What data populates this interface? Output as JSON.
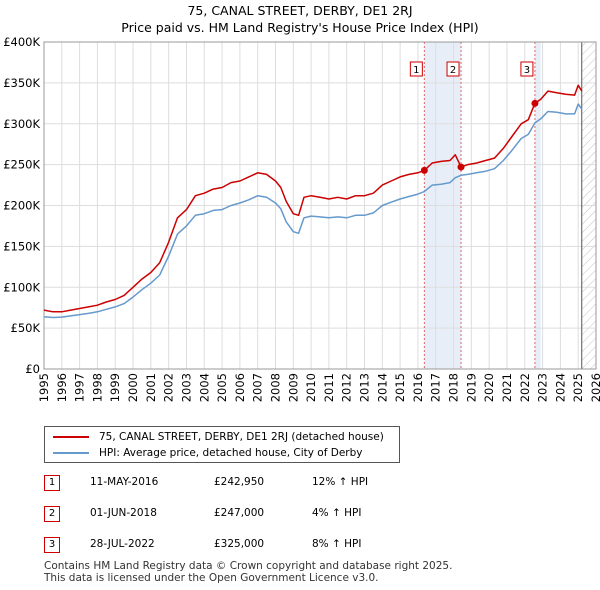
{
  "header": {
    "title": "75, CANAL STREET, DERBY, DE1 2RJ",
    "subtitle": "Price paid vs. HM Land Registry's House Price Index (HPI)"
  },
  "chart_data": {
    "type": "line",
    "title": "75, CANAL STREET, DERBY, DE1 2RJ — Price paid vs. HM Land Registry's House Price Index (HPI)",
    "xlabel": "",
    "ylabel": "",
    "xlim": [
      1995,
      2026
    ],
    "ylim": [
      0,
      400000
    ],
    "x_ticks": [
      1995,
      1996,
      1997,
      1998,
      1999,
      2000,
      2001,
      2002,
      2003,
      2004,
      2005,
      2006,
      2007,
      2008,
      2009,
      2010,
      2011,
      2012,
      2013,
      2014,
      2015,
      2016,
      2017,
      2018,
      2019,
      2020,
      2021,
      2022,
      2023,
      2024,
      2025,
      2026
    ],
    "y_ticks": [
      {
        "value": 0,
        "label": "£0"
      },
      {
        "value": 50000,
        "label": "£50K"
      },
      {
        "value": 100000,
        "label": "£100K"
      },
      {
        "value": 150000,
        "label": "£150K"
      },
      {
        "value": 200000,
        "label": "£200K"
      },
      {
        "value": 250000,
        "label": "£250K"
      },
      {
        "value": 300000,
        "label": "£300K"
      },
      {
        "value": 350000,
        "label": "£350K"
      },
      {
        "value": 400000,
        "label": "£400K"
      }
    ],
    "grid": true,
    "colors": {
      "property": "#cc0000",
      "hpi": "#6699cc",
      "band_fill": "#e8eef8",
      "vline": "#e06666",
      "future_hatch": "#999999"
    },
    "highlight_bands": [
      [
        2016.36,
        2018.42
      ],
      [
        2022.57,
        2022.9
      ]
    ],
    "future_from": 2025.2,
    "series": [
      {
        "name": "75, CANAL STREET, DERBY, DE1 2RJ (detached house)",
        "color": "#cc0000",
        "x": [
          1995.0,
          1995.5,
          1996.0,
          1996.5,
          1997.0,
          1997.5,
          1998.0,
          1998.5,
          1999.0,
          1999.5,
          2000.0,
          2000.5,
          2001.0,
          2001.5,
          2002.0,
          2002.5,
          2003.0,
          2003.5,
          2004.0,
          2004.5,
          2005.0,
          2005.5,
          2006.0,
          2006.5,
          2007.0,
          2007.5,
          2008.0,
          2008.3,
          2008.6,
          2009.0,
          2009.3,
          2009.6,
          2010.0,
          2010.5,
          2011.0,
          2011.5,
          2012.0,
          2012.5,
          2013.0,
          2013.5,
          2014.0,
          2014.5,
          2015.0,
          2015.5,
          2016.0,
          2016.36,
          2016.8,
          2017.3,
          2017.8,
          2018.1,
          2018.42,
          2018.8,
          2019.3,
          2019.8,
          2020.3,
          2020.8,
          2021.3,
          2021.8,
          2022.2,
          2022.57,
          2022.9,
          2023.3,
          2023.8,
          2024.3,
          2024.8,
          2025.0,
          2025.2
        ],
        "y": [
          72000,
          70000,
          70000,
          72000,
          74000,
          76000,
          78000,
          82000,
          85000,
          90000,
          100000,
          110000,
          118000,
          130000,
          155000,
          185000,
          195000,
          212000,
          215000,
          220000,
          222000,
          228000,
          230000,
          235000,
          240000,
          238000,
          230000,
          222000,
          205000,
          190000,
          188000,
          210000,
          212000,
          210000,
          208000,
          210000,
          208000,
          212000,
          212000,
          215000,
          225000,
          230000,
          235000,
          238000,
          240000,
          242950,
          252000,
          254000,
          255000,
          262000,
          247000,
          250000,
          252000,
          255000,
          258000,
          270000,
          285000,
          300000,
          305000,
          325000,
          330000,
          340000,
          338000,
          336000,
          335000,
          347000,
          340000
        ]
      },
      {
        "name": "HPI: Average price, detached house, City of Derby",
        "color": "#6699cc",
        "x": [
          1995.0,
          1995.5,
          1996.0,
          1996.5,
          1997.0,
          1997.5,
          1998.0,
          1998.5,
          1999.0,
          1999.5,
          2000.0,
          2000.5,
          2001.0,
          2001.5,
          2002.0,
          2002.5,
          2003.0,
          2003.5,
          2004.0,
          2004.5,
          2005.0,
          2005.5,
          2006.0,
          2006.5,
          2007.0,
          2007.5,
          2008.0,
          2008.3,
          2008.6,
          2009.0,
          2009.3,
          2009.6,
          2010.0,
          2010.5,
          2011.0,
          2011.5,
          2012.0,
          2012.5,
          2013.0,
          2013.5,
          2014.0,
          2014.5,
          2015.0,
          2015.5,
          2016.0,
          2016.36,
          2016.8,
          2017.3,
          2017.8,
          2018.1,
          2018.42,
          2018.8,
          2019.3,
          2019.8,
          2020.3,
          2020.8,
          2021.3,
          2021.8,
          2022.2,
          2022.57,
          2022.9,
          2023.3,
          2023.8,
          2024.3,
          2024.8,
          2025.0,
          2025.2
        ],
        "y": [
          64000,
          63000,
          63500,
          65000,
          66500,
          68000,
          70000,
          73000,
          76000,
          80000,
          88000,
          97000,
          105000,
          115000,
          138000,
          165000,
          175000,
          188000,
          190000,
          194000,
          195000,
          200000,
          203000,
          207000,
          212000,
          210000,
          203000,
          196000,
          180000,
          168000,
          166000,
          185000,
          187000,
          186000,
          185000,
          186000,
          185000,
          188000,
          188000,
          191000,
          200000,
          204000,
          208000,
          211000,
          214000,
          217000,
          225000,
          226000,
          228000,
          234000,
          237000,
          238000,
          240000,
          242000,
          245000,
          255000,
          268000,
          282000,
          287000,
          301000,
          306000,
          315000,
          314000,
          312000,
          312000,
          324000,
          318000
        ]
      }
    ],
    "sales": [
      {
        "label": "1",
        "x": 2016.36,
        "price": 242950
      },
      {
        "label": "2",
        "x": 2018.42,
        "price": 247000
      },
      {
        "label": "3",
        "x": 2022.57,
        "price": 325000
      }
    ]
  },
  "legend": {
    "property": "75, CANAL STREET, DERBY, DE1 2RJ (detached house)",
    "hpi": "HPI: Average price, detached house, City of Derby"
  },
  "transactions": [
    {
      "num": "1",
      "date": "11-MAY-2016",
      "price": "£242,950",
      "delta": "12% ↑ HPI"
    },
    {
      "num": "2",
      "date": "01-JUN-2018",
      "price": "£247,000",
      "delta": "4% ↑ HPI"
    },
    {
      "num": "3",
      "date": "28-JUL-2022",
      "price": "£325,000",
      "delta": "8% ↑ HPI"
    }
  ],
  "footer": {
    "line1": "Contains HM Land Registry data © Crown copyright and database right 2025.",
    "line2": "This data is licensed under the Open Government Licence v3.0."
  }
}
